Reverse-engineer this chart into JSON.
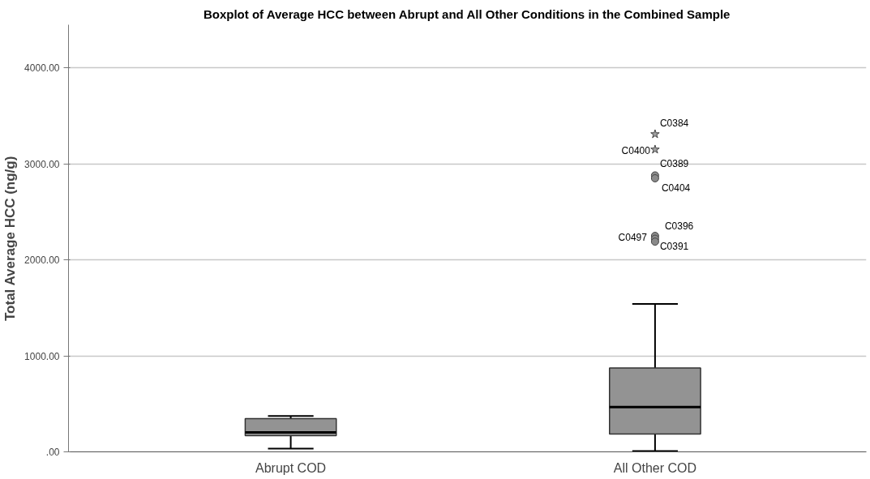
{
  "chart_data": {
    "type": "box",
    "title": "Boxplot of Average HCC between Abrupt and All Other Conditions in the Combined Sample",
    "ylabel": "Total Average HCC (ng/g)",
    "categories": [
      "Abrupt COD",
      "All Other COD"
    ],
    "boxes": [
      {
        "low": 34,
        "q1": 169,
        "median": 203,
        "q3": 347,
        "high": 373
      },
      {
        "low": 8,
        "q1": 186,
        "median": 466,
        "q3": 873,
        "high": 1542
      }
    ],
    "series": [
      {
        "type": "scatter",
        "marker": "star",
        "color": "#a0a0a0",
        "x": [
          "All Other COD",
          "All Other COD"
        ],
        "values": [
          3310,
          3150
        ]
      },
      {
        "type": "scatter",
        "marker": "circle",
        "color": "#8a8a8a",
        "x": [
          "All Other COD",
          "All Other COD",
          "All Other COD",
          "All Other COD",
          "All Other COD"
        ],
        "values": [
          2880,
          2850,
          2250,
          2220,
          2190
        ]
      }
    ],
    "color": "#939393",
    "ylim": [
      0,
      4450
    ],
    "yticks": [
      {
        "value": 0,
        "label": ".00"
      },
      {
        "value": 1000,
        "label": "1000.00"
      },
      {
        "value": 2000,
        "label": "2000.00"
      },
      {
        "value": 3000,
        "label": "3000.00"
      },
      {
        "value": 4000,
        "label": "4000.00"
      }
    ],
    "grid": "y",
    "annotations": [
      {
        "text": "C0384",
        "x": "All Other COD",
        "y": 3310
      },
      {
        "text": "C0400",
        "x": "All Other COD",
        "y": 3150
      },
      {
        "text": "C0389",
        "x": "All Other COD",
        "y": 2880
      },
      {
        "text": "C0404",
        "x": "All Other COD",
        "y": 2850
      },
      {
        "text": "C0396",
        "x": "All Other COD",
        "y": 2250
      },
      {
        "text": "C0497",
        "x": "All Other COD",
        "y": 2220
      },
      {
        "text": "C0391",
        "x": "All Other COD",
        "y": 2190
      }
    ]
  }
}
